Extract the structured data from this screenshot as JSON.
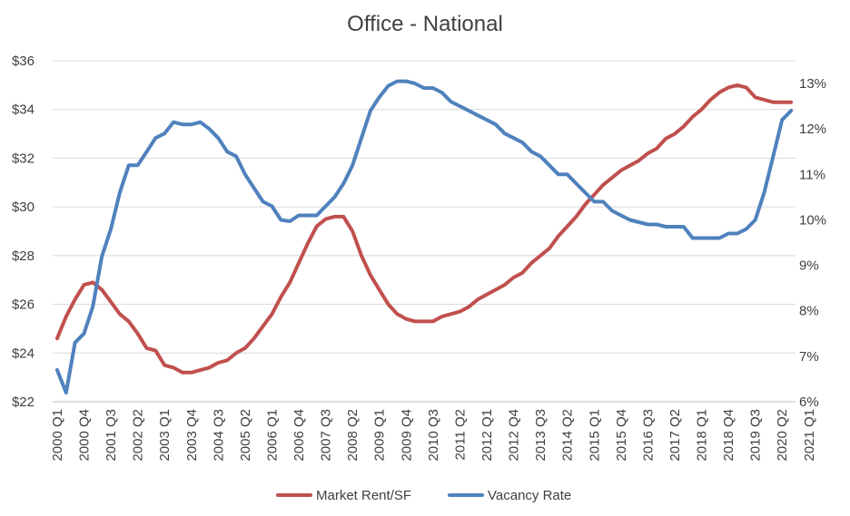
{
  "chart_data": {
    "type": "line",
    "title": "Office - National",
    "xlabel": "",
    "ylabel": "",
    "grid": true,
    "legend_position": "bottom",
    "x_tick_labels": [
      "2000 Q1",
      "2000 Q4",
      "2001 Q3",
      "2002 Q2",
      "2003 Q1",
      "2003 Q4",
      "2004 Q3",
      "2005 Q2",
      "2006 Q1",
      "2006 Q4",
      "2007 Q3",
      "2008 Q2",
      "2009 Q1",
      "2009 Q4",
      "2010 Q3",
      "2011 Q2",
      "2012 Q1",
      "2012 Q4",
      "2013 Q3",
      "2014 Q2",
      "2015 Q1",
      "2015 Q4",
      "2016 Q3",
      "2017 Q2",
      "2018 Q1",
      "2018 Q4",
      "2019 Q3",
      "2020 Q2",
      "2021 Q1"
    ],
    "y_left": {
      "min": 22,
      "max": 36,
      "step": 2,
      "tick_labels": [
        "$22",
        "$24",
        "$26",
        "$28",
        "$30",
        "$32",
        "$34",
        "$36"
      ]
    },
    "y_right": {
      "min": 6,
      "max": 13.5,
      "step": 1,
      "tick_labels": [
        "6%",
        "7%",
        "8%",
        "9%",
        "10%",
        "11%",
        "12%",
        "13%"
      ]
    },
    "series": [
      {
        "name": "Market Rent/SF",
        "axis": "left",
        "color": "#C0504D",
        "values": [
          24.6,
          25.5,
          26.2,
          26.8,
          26.9,
          26.6,
          26.1,
          25.6,
          25.3,
          24.8,
          24.2,
          24.1,
          23.5,
          23.4,
          23.2,
          23.2,
          23.3,
          23.4,
          23.6,
          23.7,
          24.0,
          24.2,
          24.6,
          25.1,
          25.6,
          26.3,
          26.9,
          27.7,
          28.5,
          29.2,
          29.5,
          29.6,
          29.6,
          29.0,
          28.0,
          27.2,
          26.6,
          26.0,
          25.6,
          25.4,
          25.3,
          25.3,
          25.3,
          25.5,
          25.6,
          25.7,
          25.9,
          26.2,
          26.4,
          26.6,
          26.8,
          27.1,
          27.3,
          27.7,
          28.0,
          28.3,
          28.8,
          29.2,
          29.6,
          30.1,
          30.5,
          30.9,
          31.2,
          31.5,
          31.7,
          31.9,
          32.2,
          32.4,
          32.8,
          33.0,
          33.3,
          33.7,
          34.0,
          34.4,
          34.7,
          34.9,
          35.0,
          34.9,
          34.5,
          34.4,
          34.3,
          34.3,
          34.3
        ]
      },
      {
        "name": "Vacancy Rate",
        "axis": "right",
        "color": "#4F81BD",
        "values": [
          6.7,
          6.2,
          7.3,
          7.5,
          8.1,
          9.2,
          9.8,
          10.6,
          11.2,
          11.2,
          11.5,
          11.8,
          11.9,
          12.15,
          12.1,
          12.1,
          12.15,
          12.0,
          11.8,
          11.5,
          11.4,
          11.0,
          10.7,
          10.4,
          10.3,
          10.0,
          9.97,
          10.1,
          10.1,
          10.1,
          10.3,
          10.5,
          10.8,
          11.2,
          11.8,
          12.4,
          12.7,
          12.95,
          13.05,
          13.05,
          13.0,
          12.9,
          12.9,
          12.8,
          12.6,
          12.5,
          12.4,
          12.3,
          12.2,
          12.1,
          11.9,
          11.8,
          11.7,
          11.5,
          11.4,
          11.2,
          11.0,
          11.0,
          10.8,
          10.6,
          10.4,
          10.4,
          10.2,
          10.1,
          10.0,
          9.95,
          9.9,
          9.9,
          9.85,
          9.85,
          9.85,
          9.6,
          9.6,
          9.6,
          9.6,
          9.7,
          9.7,
          9.8,
          10.0,
          10.6,
          11.4,
          12.2,
          12.4
        ]
      }
    ]
  }
}
